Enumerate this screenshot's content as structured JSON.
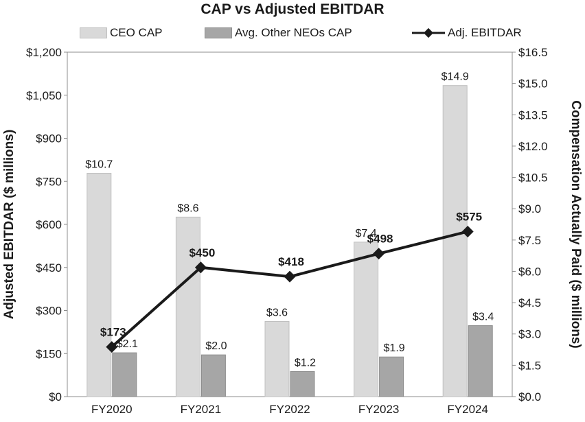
{
  "chart_data": {
    "type": "bar",
    "title": "CAP vs Adjusted EBITDAR",
    "categories": [
      "FY2020",
      "FY2021",
      "FY2022",
      "FY2023",
      "FY2024"
    ],
    "series": [
      {
        "name": "CEO CAP",
        "kind": "bar",
        "axis": "right",
        "color": "#d9d9d9",
        "border": "#bfbfbf",
        "values": [
          10.7,
          8.6,
          3.6,
          7.4,
          14.9
        ],
        "labels": [
          "$10.7",
          "$8.6",
          "$3.6",
          "$7.4",
          "$14.9"
        ]
      },
      {
        "name": "Avg. Other NEOs CAP",
        "kind": "bar",
        "axis": "right",
        "color": "#a6a6a6",
        "border": "#8c8c8c",
        "values": [
          2.1,
          2.0,
          1.2,
          1.9,
          3.4
        ],
        "labels": [
          "$2.1",
          "$2.0",
          "$1.2",
          "$1.9",
          "$3.4"
        ]
      },
      {
        "name": "Adj. EBITDAR",
        "kind": "line",
        "axis": "left",
        "color": "#1a1a1a",
        "values": [
          173,
          450,
          418,
          498,
          575
        ],
        "labels": [
          "$173",
          "$450",
          "$418",
          "$498",
          "$575"
        ]
      }
    ],
    "y_left": {
      "label": "Adjusted EBITDAR ($ millions)",
      "lim": [
        0,
        1200
      ],
      "ticks": [
        "$0",
        "$150",
        "$300",
        "$450",
        "$600",
        "$750",
        "$900",
        "$1,050",
        "$1,200"
      ]
    },
    "y_right": {
      "label": "Compensation Actually Paid ($ millions)",
      "lim": [
        0,
        16.5
      ],
      "ticks": [
        "$0.0",
        "$1.5",
        "$3.0",
        "$4.5",
        "$6.0",
        "$7.5",
        "$9.0",
        "$10.5",
        "$12.0",
        "$13.5",
        "$15.0",
        "$16.5"
      ]
    },
    "legend_position": "top",
    "grid": false
  }
}
